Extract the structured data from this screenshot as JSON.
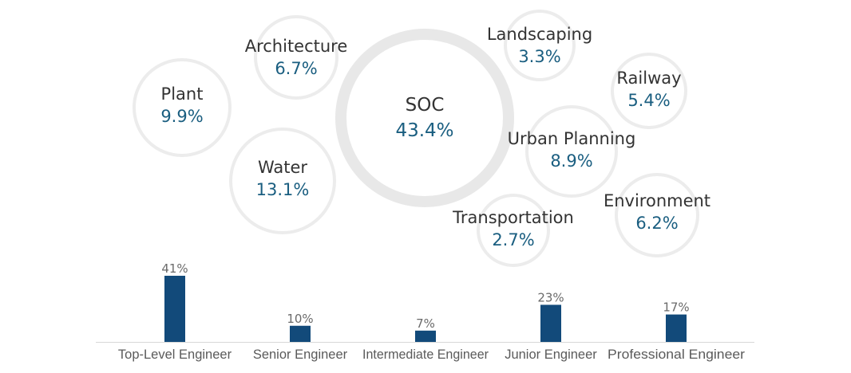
{
  "chart_data": [
    {
      "type": "bubble",
      "items": [
        {
          "name": "SOC",
          "value": "43.4%"
        },
        {
          "name": "Water",
          "value": "13.1%"
        },
        {
          "name": "Plant",
          "value": "9.9%"
        },
        {
          "name": "Urban Planning",
          "value": "8.9%"
        },
        {
          "name": "Architecture",
          "value": "6.7%"
        },
        {
          "name": "Environment",
          "value": "6.2%"
        },
        {
          "name": "Railway",
          "value": "5.4%"
        },
        {
          "name": "Landscaping",
          "value": "3.3%"
        },
        {
          "name": "Transportation",
          "value": "2.7%"
        }
      ]
    },
    {
      "type": "bar",
      "categories": [
        "Top-Level Engineer",
        "Senior Engineer",
        "Intermediate Engineer",
        "Junior Engineer",
        "Professional Engineer"
      ],
      "values": [
        41,
        10,
        7,
        23,
        17
      ],
      "value_labels": [
        "41%",
        "10%",
        "7%",
        "23%",
        "17%"
      ],
      "bar_color": "#124a7a",
      "ylim": [
        0,
        41
      ]
    }
  ]
}
